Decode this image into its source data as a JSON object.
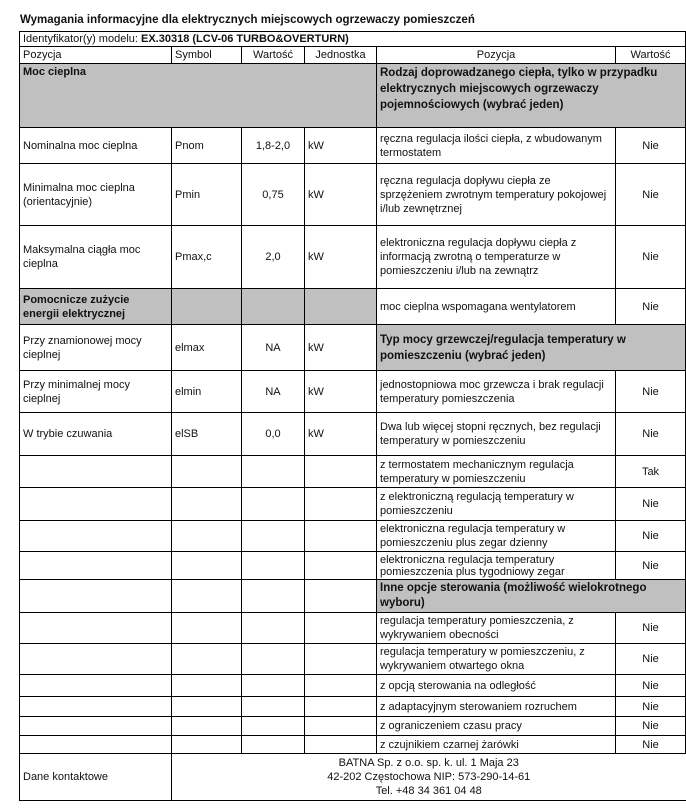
{
  "title": "Wymagania informacyjne dla elektrycznych miejscowych ogrzewaczy pomieszczeń",
  "identifier": {
    "label": "Identyfikator(y) modelu: ",
    "value": "EX.30318 (LCV-06 TURBO&OVERTURN)"
  },
  "headers": [
    "Pozycja",
    "Symbol",
    "Wartość",
    "Jednostka",
    "Pozycja",
    "Wartość"
  ],
  "left": {
    "section1": "Moc cieplna",
    "rows1": [
      {
        "label": "Nominalna moc cieplna",
        "symbol": "Pnom",
        "value": "1,8-2,0",
        "unit": "kW"
      },
      {
        "label": "Minimalna moc cieplna (orientacyjnie)",
        "symbol": "Pmin",
        "value": "0,75",
        "unit": "kW"
      },
      {
        "label": "Maksymalna ciągła moc cieplna",
        "symbol": "Pmax,c",
        "value": "2,0",
        "unit": "kW"
      }
    ],
    "section2": "Pomocnicze zużycie energii elektrycznej",
    "rows2": [
      {
        "label": "Przy znamionowej mocy cieplnej",
        "symbol": "elmax",
        "value": "NA",
        "unit": "kW"
      },
      {
        "label": "Przy minimalnej mocy cieplnej",
        "symbol": "elmin",
        "value": "NA",
        "unit": "kW"
      },
      {
        "label": "W trybie czuwania",
        "symbol": "elSB",
        "value": "0,0",
        "unit": "kW"
      }
    ]
  },
  "right": {
    "section1": "Rodzaj doprowadzanego ciepła, tylko w przypadku elektrycznych miejscowych ogrzewaczy pojemnościowych (wybrać jeden)",
    "rows1": [
      {
        "label": "ręczna regulacja ilości ciepła, z wbudowanym termostatem",
        "value": "Nie"
      },
      {
        "label": "ręczna regulacja dopływu ciepła ze sprzężeniem zwrotnym temperatury pokojowej i/lub zewnętrznej",
        "value": "Nie"
      },
      {
        "label": "elektroniczna regulacja dopływu ciepła z informacją zwrotną o temperaturze w pomieszczeniu i/lub na zewnątrz",
        "value": "Nie"
      },
      {
        "label": "moc cieplna wspomagana wentylatorem",
        "value": "Nie"
      }
    ],
    "section2": "Typ mocy grzewczej/regulacja temperatury w pomieszczeniu (wybrać jeden)",
    "rows2": [
      {
        "label": "jednostopniowa moc grzewcza i brak regulacji temperatury pomieszczenia",
        "value": "Nie"
      },
      {
        "label": "Dwa lub więcej stopni ręcznych, bez regulacji temperatury w pomieszczeniu",
        "value": "Nie"
      },
      {
        "label": "z termostatem mechanicznym regulacja temperatury w pomieszczeniu",
        "value": "Tak"
      },
      {
        "label": "z elektroniczną regulacją temperatury w pomieszczeniu",
        "value": "Nie"
      },
      {
        "label": "elektroniczna regulacja temperatury w pomieszczeniu plus zegar dzienny",
        "value": "Nie"
      },
      {
        "label": "elektroniczna regulacja temperatury pomieszczenia plus tygodniowy zegar",
        "value": "Nie"
      }
    ],
    "section3": "Inne opcje sterowania (możliwość wielokrotnego wyboru)",
    "rows3": [
      {
        "label": "regulacja temperatury pomieszczenia, z wykrywaniem obecności",
        "value": "Nie"
      },
      {
        "label": "regulacja temperatury w pomieszczeniu, z wykrywaniem otwartego okna",
        "value": "Nie"
      },
      {
        "label": "z opcją sterowania na odległość",
        "value": "Nie"
      },
      {
        "label": "z adaptacyjnym sterowaniem rozruchem",
        "value": "Nie"
      },
      {
        "label": "z ograniczeniem czasu pracy",
        "value": "Nie"
      },
      {
        "label": "z czujnikiem czarnej żarówki",
        "value": "Nie"
      }
    ]
  },
  "contact": {
    "label": "Dane kontaktowe",
    "lines": [
      "BATNA Sp. z o.o. sp. k. ul. 1 Maja 23",
      "42-202 Częstochowa NIP: 573-290-14-61",
      "Tel. +48 34 361 04 48"
    ]
  }
}
